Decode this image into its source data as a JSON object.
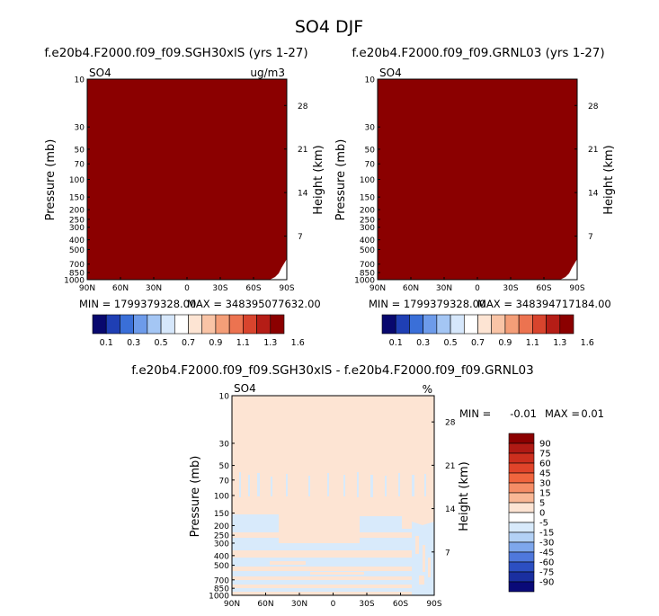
{
  "title": "SO4 DJF",
  "colors": {
    "panel_fill": "#8b0000",
    "diff_background": "#fde4d3",
    "diff_negative": "#d8eafb",
    "diff_negative_deep": "#bcd7f4"
  },
  "chart_data": [
    {
      "type": "heatmap",
      "title": "f.e20b4.F2000.f09_f09.SGH30xlS (yrs 1-27)",
      "variable": "SO4",
      "units": "ug/m3",
      "ylabel": "Pressure (mb)",
      "y2label": "Height (km)",
      "x_ticks": [
        "90N",
        "60N",
        "30N",
        "0",
        "30S",
        "60S",
        "90S"
      ],
      "x_range": [
        90,
        -90
      ],
      "y_ticks": [
        "10",
        "30",
        "50",
        "70",
        "100",
        "150",
        "200",
        "250",
        "300",
        "400",
        "500",
        "700",
        "850",
        "1000"
      ],
      "y_range": [
        1000,
        10
      ],
      "y2_ticks": [
        "28",
        "21",
        "14",
        "7"
      ],
      "stats": {
        "min": "MIN = 1799379328.00",
        "max": "MAX = 348395077632.00"
      },
      "colorbar": {
        "levels": [
          "0.1",
          "0.3",
          "0.5",
          "0.7",
          "0.9",
          "1.1",
          "1.3",
          "1.6"
        ],
        "colors": [
          "#08086e",
          "#1f3fb4",
          "#3a6fd8",
          "#6d9bea",
          "#a4c6f4",
          "#d6e7fb",
          "#ffffff",
          "#fde4d3",
          "#f9c4a6",
          "#f49e78",
          "#ec7350",
          "#d8442d",
          "#b51d16",
          "#8b0000"
        ]
      }
    },
    {
      "type": "heatmap",
      "title": "f.e20b4.F2000.f09_f09.GRNL03 (yrs 1-27)",
      "variable": "SO4",
      "ylabel": "Pressure (mb)",
      "y2label": "Height (km)",
      "x_ticks": [
        "90N",
        "60N",
        "30N",
        "0",
        "30S",
        "60S",
        "90S"
      ],
      "y_ticks": [
        "10",
        "30",
        "50",
        "70",
        "100",
        "150",
        "200",
        "250",
        "300",
        "400",
        "500",
        "700",
        "850",
        "1000"
      ],
      "y2_ticks": [
        "28",
        "21",
        "14",
        "7"
      ],
      "stats": {
        "min": "MIN = 1799379328.00",
        "max": "MAX = 348394717184.00"
      },
      "colorbar": {
        "levels": [
          "0.1",
          "0.3",
          "0.5",
          "0.7",
          "0.9",
          "1.1",
          "1.3",
          "1.6"
        ]
      }
    },
    {
      "type": "heatmap",
      "title": "f.e20b4.F2000.f09_f09.SGH30xlS - f.e20b4.F2000.f09_f09.GRNL03",
      "variable": "SO4",
      "units": "%",
      "ylabel": "Pressure (mb)",
      "y2label": "Height (km)",
      "x_ticks": [
        "90N",
        "60N",
        "30N",
        "0",
        "30S",
        "60S",
        "90S"
      ],
      "y_ticks": [
        "10",
        "30",
        "50",
        "70",
        "100",
        "150",
        "200",
        "250",
        "300",
        "400",
        "500",
        "700",
        "850",
        "1000"
      ],
      "y2_ticks": [
        "28",
        "21",
        "14",
        "7"
      ],
      "stats": {
        "min_label": "MIN =",
        "min": "-0.01",
        "max_label": "MAX =",
        "max": "0.01"
      },
      "colorbar": {
        "levels": [
          "90",
          "75",
          "60",
          "45",
          "30",
          "15",
          "5",
          "0",
          "-5",
          "-15",
          "-30",
          "-45",
          "-60",
          "-75",
          "-90"
        ],
        "colors": [
          "#8b0000",
          "#b01a14",
          "#cc2f1e",
          "#e0442a",
          "#f0653e",
          "#f58d66",
          "#f9b795",
          "#fde4d3",
          "#ffffff",
          "#d8eafb",
          "#b3d1f5",
          "#7ea7ec",
          "#4f78dc",
          "#2c4fc2",
          "#1a2fa0",
          "#0a0a78"
        ]
      }
    }
  ]
}
